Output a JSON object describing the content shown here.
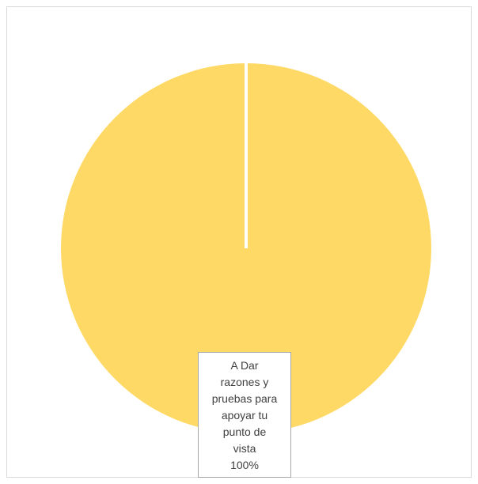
{
  "chart_data": {
    "type": "pie",
    "categories": [
      "A Dar razones y pruebas para apoyar tu punto de vista"
    ],
    "values": [
      100
    ],
    "colors": [
      "#FFD966"
    ],
    "data_labels": [
      {
        "lines": [
          "A Dar",
          "razones y",
          "pruebas para",
          "apoyar tu",
          "punto de",
          "vista"
        ],
        "percent": "100%"
      }
    ]
  }
}
